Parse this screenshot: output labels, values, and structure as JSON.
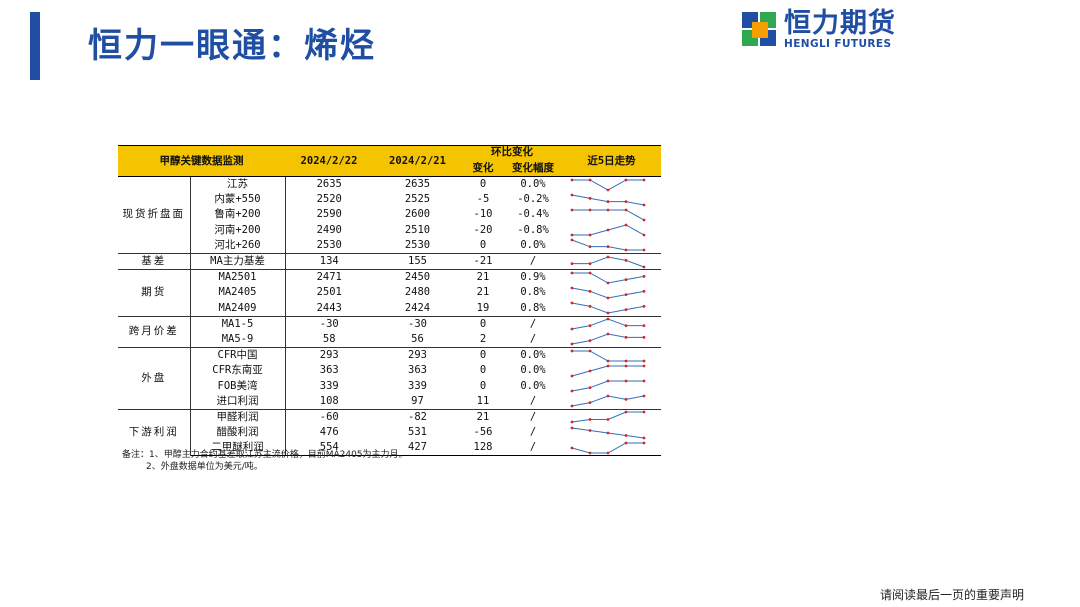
{
  "header": {
    "title": "恒力一眼通：烯烃",
    "logo_cn": "恒力期货",
    "logo_en": "HENGLI FUTURES",
    "accent_color": "#1f4ea3"
  },
  "table": {
    "header_color": "#f5c400",
    "col_title": "甲醇关键数据监测",
    "col_date1": "2024/2/22",
    "col_date2": "2024/2/21",
    "col_wow": "环比变化",
    "col_change": "变化",
    "col_pct": "变化幅度",
    "col_trend": "近5日走势",
    "groups": [
      {
        "label": "现货折盘面",
        "rows": [
          {
            "item": "江苏",
            "v1": "2635",
            "v2": "2635",
            "chg": "0",
            "pct": "0.0%",
            "trend": [
              4,
              4,
              3,
              4,
              4
            ]
          },
          {
            "item": "内蒙+550",
            "v1": "2520",
            "v2": "2525",
            "chg": "-5",
            "pct": "-0.2%",
            "trend": [
              5,
              4,
              3,
              3,
              2
            ]
          },
          {
            "item": "鲁南+200",
            "v1": "2590",
            "v2": "2600",
            "chg": "-10",
            "pct": "-0.4%",
            "trend": [
              3,
              3,
              3,
              3,
              1
            ]
          },
          {
            "item": "河南+200",
            "v1": "2490",
            "v2": "2510",
            "chg": "-20",
            "pct": "-0.8%",
            "trend": [
              3,
              3,
              4,
              5,
              3
            ]
          },
          {
            "item": "河北+260",
            "v1": "2530",
            "v2": "2530",
            "chg": "0",
            "pct": "0.0%",
            "trend": [
              5,
              3,
              3,
              2,
              2
            ]
          }
        ]
      },
      {
        "label": "基差",
        "rows": [
          {
            "item": "MA主力基差",
            "v1": "134",
            "v2": "155",
            "chg": "-21",
            "pct": "/",
            "trend": [
              3,
              3,
              5,
              4,
              2
            ]
          }
        ]
      },
      {
        "label": "期货",
        "rows": [
          {
            "item": "MA2501",
            "v1": "2471",
            "v2": "2450",
            "chg": "21",
            "pct": "0.9%",
            "trend": [
              5,
              5,
              2,
              3,
              4
            ]
          },
          {
            "item": "MA2405",
            "v1": "2501",
            "v2": "2480",
            "chg": "21",
            "pct": "0.8%",
            "trend": [
              5,
              4,
              2,
              3,
              4
            ]
          },
          {
            "item": "MA2409",
            "v1": "2443",
            "v2": "2424",
            "chg": "19",
            "pct": "0.8%",
            "trend": [
              5,
              4,
              2,
              3,
              4
            ]
          }
        ]
      },
      {
        "label": "跨月价差",
        "rows": [
          {
            "item": "MA1-5",
            "v1": "-30",
            "v2": "-30",
            "chg": "0",
            "pct": "/",
            "trend": [
              2,
              3,
              5,
              3,
              3
            ]
          },
          {
            "item": "MA5-9",
            "v1": "58",
            "v2": "56",
            "chg": "2",
            "pct": "/",
            "trend": [
              2,
              3,
              5,
              4,
              4
            ]
          }
        ]
      },
      {
        "label": "外盘",
        "rows": [
          {
            "item": "CFR中国",
            "v1": "293",
            "v2": "293",
            "chg": "0",
            "pct": "0.0%",
            "trend": [
              5,
              5,
              3,
              3,
              3
            ]
          },
          {
            "item": "CFR东南亚",
            "v1": "363",
            "v2": "363",
            "chg": "0",
            "pct": "0.0%",
            "trend": [
              1,
              3,
              5,
              5,
              5
            ]
          },
          {
            "item": "FOB美湾",
            "v1": "339",
            "v2": "339",
            "chg": "0",
            "pct": "0.0%",
            "trend": [
              1,
              2,
              4,
              4,
              4
            ]
          },
          {
            "item": "进口利润",
            "v1": "108",
            "v2": "97",
            "chg": "11",
            "pct": "/",
            "trend": [
              1,
              2,
              4,
              3,
              4
            ]
          }
        ]
      },
      {
        "label": "下游利润",
        "rows": [
          {
            "item": "甲醛利润",
            "v1": "-60",
            "v2": "-82",
            "chg": "21",
            "pct": "/",
            "trend": [
              1,
              2,
              2,
              5,
              5
            ]
          },
          {
            "item": "醋酸利润",
            "v1": "476",
            "v2": "531",
            "chg": "-56",
            "pct": "/",
            "trend": [
              5,
              4,
              3,
              2,
              1
            ]
          },
          {
            "item": "二甲醚利润",
            "v1": "554",
            "v2": "427",
            "chg": "128",
            "pct": "/",
            "trend": [
              3,
              2,
              2,
              4,
              4
            ]
          }
        ]
      }
    ]
  },
  "notes": {
    "line1": "备注：1、甲醇主力合约基差取江苏主流价格，目前MA2405为主力月。",
    "line2": "2、外盘数据单位为美元/吨。"
  },
  "footer": {
    "disclaimer": "请阅读最后一页的重要声明"
  }
}
